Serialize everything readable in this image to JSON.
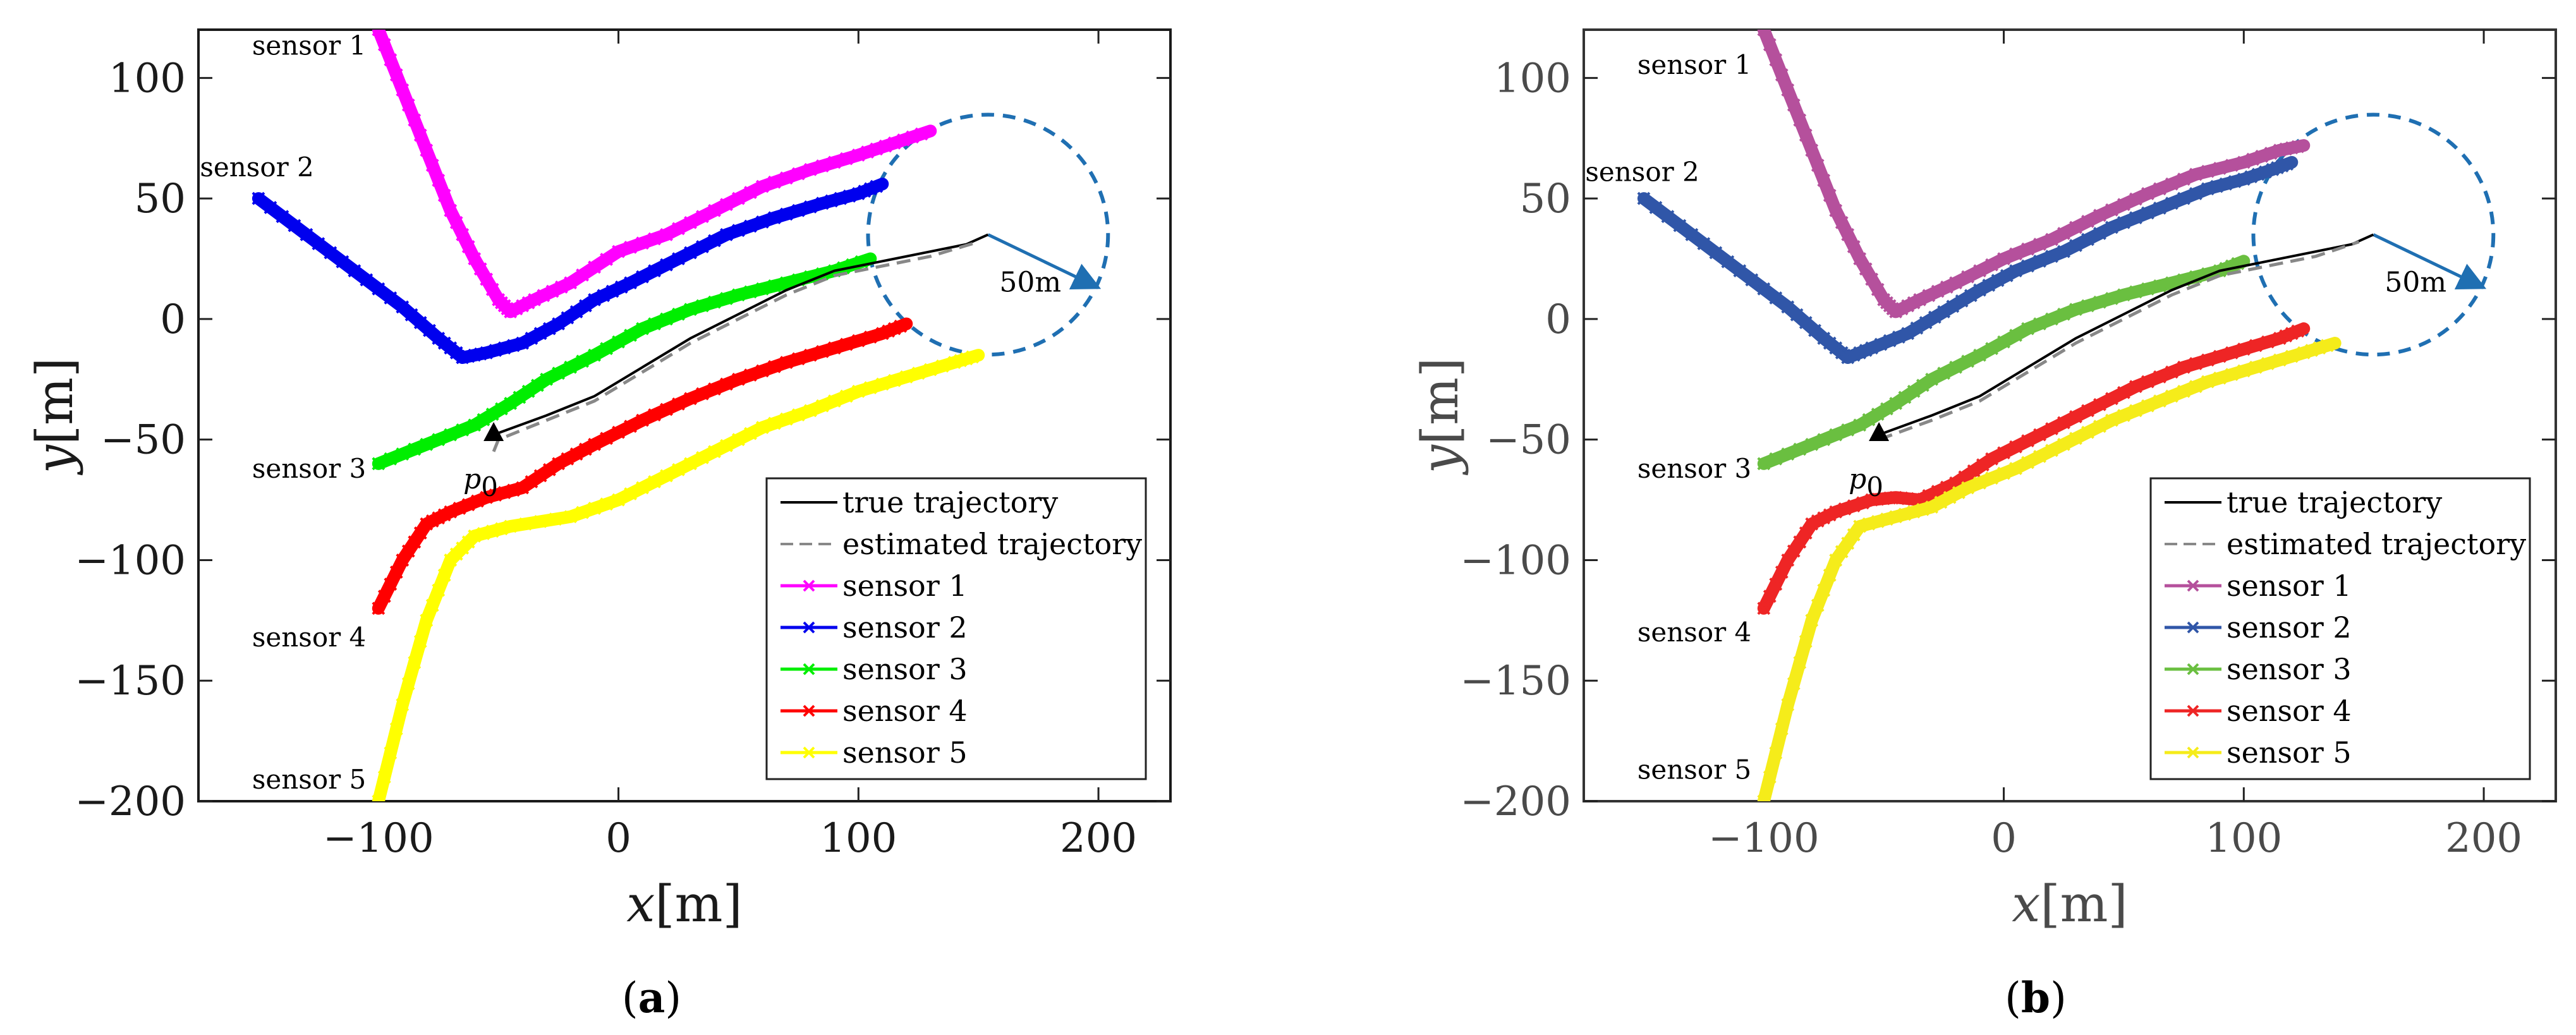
{
  "chart_data": [
    {
      "id": "a",
      "type": "line",
      "caption": "a",
      "xlabel": "x[m]",
      "ylabel": "y[m]",
      "xlim": [
        -175,
        230
      ],
      "ylim": [
        -200,
        120
      ],
      "xticks": [
        "-100",
        "0",
        "100",
        "200"
      ],
      "xtick_values": [
        -100,
        0,
        100,
        200
      ],
      "yticks": [
        "100",
        "50",
        "0",
        "-50",
        "-100",
        "-150",
        "-200"
      ],
      "ytick_values": [
        100,
        50,
        0,
        -50,
        -100,
        -150,
        -200
      ],
      "start_label": "p",
      "start_label_sub": "0",
      "start_point": [
        -52,
        -48
      ],
      "circle": {
        "center": [
          154,
          35
        ],
        "radius": 50,
        "label": "50m",
        "arrow_to": [
          200,
          13
        ]
      },
      "series": [
        {
          "name": "true trajectory",
          "color": "#000000",
          "style": "solid",
          "points": [
            [
              -52,
              -48
            ],
            [
              -30,
              -40
            ],
            [
              -10,
              -32
            ],
            [
              10,
              -20
            ],
            [
              30,
              -8
            ],
            [
              50,
              2
            ],
            [
              70,
              12
            ],
            [
              90,
              20
            ],
            [
              110,
              24
            ],
            [
              130,
              28
            ],
            [
              145,
              31
            ],
            [
              154,
              35
            ]
          ]
        },
        {
          "name": "estimated trajectory",
          "color": "#888888",
          "style": "dashed",
          "points": [
            [
              -52,
              -55
            ],
            [
              -50,
              -50
            ],
            [
              -30,
              -42
            ],
            [
              -10,
              -34
            ],
            [
              10,
              -22
            ],
            [
              30,
              -10
            ],
            [
              50,
              0
            ],
            [
              70,
              10
            ],
            [
              90,
              18
            ],
            [
              110,
              22
            ],
            [
              130,
              26
            ],
            [
              150,
              32
            ]
          ]
        },
        {
          "name": "sensor 1",
          "color": "#ff00ff",
          "label": "sensor 1",
          "label_at": [
            -100,
            118
          ],
          "points": [
            [
              -100,
              120
            ],
            [
              -90,
              95
            ],
            [
              -80,
              70
            ],
            [
              -70,
              45
            ],
            [
              -60,
              25
            ],
            [
              -50,
              8
            ],
            [
              -45,
              3
            ],
            [
              -35,
              8
            ],
            [
              -20,
              15
            ],
            [
              0,
              28
            ],
            [
              20,
              35
            ],
            [
              40,
              45
            ],
            [
              60,
              55
            ],
            [
              80,
              62
            ],
            [
              100,
              68
            ],
            [
              115,
              73
            ],
            [
              130,
              78
            ]
          ]
        },
        {
          "name": "sensor 2",
          "color": "#0000ee",
          "label": "sensor 2",
          "label_at": [
            -152,
            50
          ],
          "points": [
            [
              -150,
              50
            ],
            [
              -130,
              35
            ],
            [
              -110,
              20
            ],
            [
              -90,
              5
            ],
            [
              -75,
              -8
            ],
            [
              -65,
              -16
            ],
            [
              -55,
              -14
            ],
            [
              -40,
              -10
            ],
            [
              -25,
              -2
            ],
            [
              -10,
              8
            ],
            [
              5,
              15
            ],
            [
              25,
              25
            ],
            [
              45,
              35
            ],
            [
              65,
              42
            ],
            [
              85,
              48
            ],
            [
              100,
              52
            ],
            [
              110,
              56
            ]
          ]
        },
        {
          "name": "sensor 3",
          "color": "#00ee00",
          "label": "sensor 3",
          "label_at": [
            -100,
            -60
          ],
          "points": [
            [
              -100,
              -60
            ],
            [
              -80,
              -52
            ],
            [
              -60,
              -44
            ],
            [
              -45,
              -35
            ],
            [
              -30,
              -25
            ],
            [
              -10,
              -15
            ],
            [
              10,
              -4
            ],
            [
              30,
              4
            ],
            [
              50,
              10
            ],
            [
              70,
              15
            ],
            [
              90,
              20
            ],
            [
              105,
              25
            ]
          ]
        },
        {
          "name": "sensor 4",
          "color": "#ff0000",
          "label": "sensor 4",
          "label_at": [
            -100,
            -120
          ],
          "points": [
            [
              -100,
              -120
            ],
            [
              -90,
              -100
            ],
            [
              -80,
              -85
            ],
            [
              -70,
              -80
            ],
            [
              -55,
              -74
            ],
            [
              -40,
              -70
            ],
            [
              -25,
              -60
            ],
            [
              -10,
              -52
            ],
            [
              10,
              -42
            ],
            [
              30,
              -33
            ],
            [
              50,
              -25
            ],
            [
              70,
              -18
            ],
            [
              90,
              -12
            ],
            [
              110,
              -6
            ],
            [
              120,
              -2
            ]
          ]
        },
        {
          "name": "sensor 5",
          "color": "#ffff00",
          "label": "sensor 5",
          "label_at": [
            -100,
            -200
          ],
          "points": [
            [
              -100,
              -200
            ],
            [
              -90,
              -160
            ],
            [
              -80,
              -125
            ],
            [
              -70,
              -100
            ],
            [
              -60,
              -90
            ],
            [
              -45,
              -86
            ],
            [
              -20,
              -82
            ],
            [
              0,
              -75
            ],
            [
              20,
              -65
            ],
            [
              40,
              -55
            ],
            [
              60,
              -45
            ],
            [
              80,
              -38
            ],
            [
              100,
              -30
            ],
            [
              120,
              -24
            ],
            [
              140,
              -18
            ],
            [
              150,
              -15
            ]
          ]
        }
      ]
    },
    {
      "id": "b",
      "type": "line",
      "caption": "b",
      "xlabel": "x[m]",
      "ylabel": "y[m]",
      "xlim": [
        -175,
        230
      ],
      "ylim": [
        -200,
        120
      ],
      "xticks": [
        "-100",
        "0",
        "100",
        "200"
      ],
      "xtick_values": [
        -100,
        0,
        100,
        200
      ],
      "yticks": [
        "100",
        "50",
        "0",
        "-50",
        "-100",
        "-150",
        "-200"
      ],
      "ytick_values": [
        100,
        50,
        0,
        -50,
        -100,
        -150,
        -200
      ],
      "start_label": "p",
      "start_label_sub": "0",
      "start_point": [
        -52,
        -48
      ],
      "circle": {
        "center": [
          154,
          35
        ],
        "radius": 50,
        "label": "50m",
        "arrow_to": [
          200,
          13
        ]
      },
      "series": [
        {
          "name": "true trajectory",
          "color": "#000000",
          "style": "solid",
          "points": [
            [
              -52,
              -48
            ],
            [
              -30,
              -40
            ],
            [
              -10,
              -32
            ],
            [
              10,
              -20
            ],
            [
              30,
              -8
            ],
            [
              50,
              2
            ],
            [
              70,
              12
            ],
            [
              90,
              20
            ],
            [
              110,
              24
            ],
            [
              130,
              28
            ],
            [
              145,
              31
            ],
            [
              154,
              35
            ]
          ]
        },
        {
          "name": "estimated trajectory",
          "color": "#888888",
          "style": "dashed",
          "points": [
            [
              -52,
              -50
            ],
            [
              -30,
              -42
            ],
            [
              -10,
              -34
            ],
            [
              10,
              -22
            ],
            [
              30,
              -10
            ],
            [
              50,
              0
            ],
            [
              70,
              10
            ],
            [
              90,
              18
            ],
            [
              110,
              22
            ],
            [
              130,
              26
            ],
            [
              148,
              32
            ]
          ]
        },
        {
          "name": "sensor 1",
          "color": "#b5509c",
          "label": "sensor 1",
          "label_at": [
            -100,
            110
          ],
          "points": [
            [
              -100,
              120
            ],
            [
              -90,
              95
            ],
            [
              -80,
              70
            ],
            [
              -70,
              45
            ],
            [
              -60,
              25
            ],
            [
              -50,
              8
            ],
            [
              -45,
              3
            ],
            [
              -35,
              8
            ],
            [
              -20,
              15
            ],
            [
              0,
              25
            ],
            [
              20,
              33
            ],
            [
              40,
              43
            ],
            [
              60,
              52
            ],
            [
              80,
              60
            ],
            [
              100,
              65
            ],
            [
              115,
              70
            ],
            [
              125,
              72
            ]
          ]
        },
        {
          "name": "sensor 2",
          "color": "#3056a8",
          "label": "sensor 2",
          "label_at": [
            -152,
            48
          ],
          "points": [
            [
              -150,
              50
            ],
            [
              -130,
              35
            ],
            [
              -110,
              20
            ],
            [
              -90,
              5
            ],
            [
              -75,
              -8
            ],
            [
              -65,
              -16
            ],
            [
              -55,
              -12
            ],
            [
              -40,
              -6
            ],
            [
              -25,
              3
            ],
            [
              -10,
              12
            ],
            [
              5,
              20
            ],
            [
              25,
              28
            ],
            [
              45,
              38
            ],
            [
              65,
              46
            ],
            [
              85,
              54
            ],
            [
              100,
              58
            ],
            [
              112,
              62
            ],
            [
              120,
              65
            ]
          ]
        },
        {
          "name": "sensor 3",
          "color": "#6abf40",
          "label": "sensor 3",
          "label_at": [
            -100,
            -60
          ],
          "points": [
            [
              -100,
              -60
            ],
            [
              -80,
              -52
            ],
            [
              -60,
              -44
            ],
            [
              -45,
              -35
            ],
            [
              -30,
              -25
            ],
            [
              -10,
              -15
            ],
            [
              10,
              -4
            ],
            [
              30,
              4
            ],
            [
              50,
              10
            ],
            [
              70,
              15
            ],
            [
              90,
              20
            ],
            [
              100,
              24
            ]
          ]
        },
        {
          "name": "sensor 4",
          "color": "#ee2525",
          "label": "sensor 4",
          "label_at": [
            -100,
            -118
          ],
          "points": [
            [
              -100,
              -120
            ],
            [
              -90,
              -100
            ],
            [
              -80,
              -85
            ],
            [
              -70,
              -80
            ],
            [
              -55,
              -75
            ],
            [
              -45,
              -74
            ],
            [
              -35,
              -75
            ],
            [
              -20,
              -68
            ],
            [
              -5,
              -58
            ],
            [
              15,
              -48
            ],
            [
              35,
              -38
            ],
            [
              55,
              -28
            ],
            [
              75,
              -20
            ],
            [
              95,
              -14
            ],
            [
              115,
              -8
            ],
            [
              125,
              -4
            ]
          ]
        },
        {
          "name": "sensor 5",
          "color": "#f5ec1a",
          "label": "sensor 5",
          "label_at": [
            -100,
            -196
          ],
          "points": [
            [
              -100,
              -200
            ],
            [
              -90,
              -160
            ],
            [
              -80,
              -125
            ],
            [
              -70,
              -100
            ],
            [
              -60,
              -86
            ],
            [
              -45,
              -82
            ],
            [
              -30,
              -78
            ],
            [
              -15,
              -70
            ],
            [
              5,
              -62
            ],
            [
              25,
              -52
            ],
            [
              45,
              -42
            ],
            [
              65,
              -34
            ],
            [
              85,
              -26
            ],
            [
              105,
              -20
            ],
            [
              125,
              -14
            ],
            [
              138,
              -10
            ]
          ]
        }
      ]
    }
  ],
  "legend": {
    "entries": [
      "true trajectory",
      "estimated trajectory",
      "sensor 1",
      "sensor 2",
      "sensor 3",
      "sensor 4",
      "sensor 5"
    ]
  }
}
